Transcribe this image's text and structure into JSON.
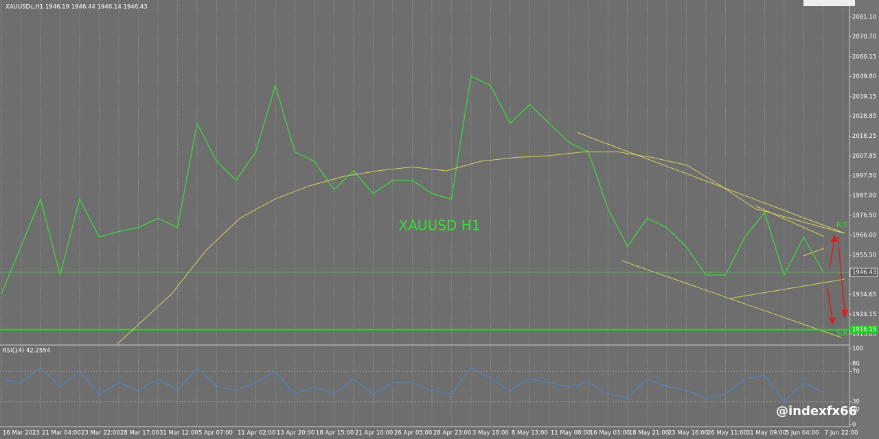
{
  "header": {
    "title": "XAUUSDc,H1  1946.19 1946.44 1946.14 1946.43"
  },
  "watermark": "XAUUSD H1",
  "annotations": {
    "resistance": "R.S",
    "support": "S.R"
  },
  "badge": "@indexfx66",
  "chart_data": {
    "type": "line",
    "categories": [
      "16 Mar 2023",
      "21 Mar 04:00",
      "23 Mar 22:00",
      "28 Mar 17:00",
      "31 Mar 12:00",
      "5 Apr 07:00",
      "11 Apr 02:00",
      "13 Apr 20:00",
      "18 Apr 15:00",
      "21 Apr 10:00",
      "26 Apr 05:00",
      "28 Apr 23:00",
      "3 May 18:00",
      "8 May 13:00",
      "11 May 08:00",
      "16 May 03:00",
      "18 May 21:00",
      "23 May 16:00",
      "26 May 11:00",
      "31 May 09:00",
      "5 Jun 04:00",
      "7 Jun 22:00"
    ],
    "xlim": [
      -0.035,
      21.67
    ],
    "ylim": [
      1908.4,
      2085.8
    ],
    "yticks": [
      {
        "value": 2081.1,
        "label": "2081.10"
      },
      {
        "value": 2070.7,
        "label": "2070.70"
      },
      {
        "value": 2060.15,
        "label": "2060.15"
      },
      {
        "value": 2049.8,
        "label": "2049.80"
      },
      {
        "value": 2039.15,
        "label": "2039.15"
      },
      {
        "value": 2028.85,
        "label": "2028.85"
      },
      {
        "value": 2018.25,
        "label": "2018.25"
      },
      {
        "value": 2007.85,
        "label": "2007.85"
      },
      {
        "value": 1997.5,
        "label": "1997.50"
      },
      {
        "value": 1987,
        "label": "1987.00"
      },
      {
        "value": 1976.5,
        "label": "1976.50"
      },
      {
        "value": 1966,
        "label": "1966.00"
      },
      {
        "value": 1955.5,
        "label": "1955.50"
      },
      {
        "value": 1934.65,
        "label": "1934.65"
      },
      {
        "value": 1924.15,
        "label": "1924.15"
      },
      {
        "value": 1913.85,
        "label": "1913.85"
      }
    ],
    "current_price": {
      "value": 1946.43,
      "label": "1946.43"
    },
    "support_level": {
      "value": 1916.15,
      "label": "1916.15"
    },
    "series": [
      {
        "name": "XAUUSDc",
        "color": "#44cc44",
        "x": [
          0,
          0.5,
          1,
          1.5,
          2,
          2.5,
          3,
          3.5,
          4,
          4.5,
          5,
          5.5,
          6,
          6.5,
          7,
          7.5,
          8,
          8.5,
          9,
          9.5,
          10,
          10.5,
          11,
          11.5,
          12,
          12.5,
          13,
          13.5,
          14,
          14.5,
          15,
          15.5,
          16,
          16.5,
          17,
          17.5,
          18,
          18.5,
          19,
          19.5,
          20,
          20.5,
          21
        ],
        "values": [
          1935,
          1960,
          1985,
          1945,
          1985,
          1965,
          1968,
          1970,
          1975,
          1970,
          2025,
          2005,
          1995,
          2010,
          2045,
          2010,
          2005,
          1990,
          2000,
          1988,
          1995,
          1995,
          1988,
          1985,
          2050,
          2045,
          2025,
          2035,
          2025,
          2015,
          2010,
          1980,
          1960,
          1975,
          1970,
          1960,
          1945,
          1945,
          1965,
          1978,
          1945,
          1965,
          1946.43
        ]
      },
      {
        "name": "MA",
        "color": "#d8d060",
        "x": [
          2.95,
          4.35,
          5.23,
          6.1,
          6.98,
          7.86,
          8.74,
          9.61,
          10.49,
          11.37,
          12.25,
          13.12,
          14,
          14.88,
          15.75,
          16.63,
          17.51,
          18.39,
          19.26,
          20.14,
          21.54
        ],
        "values": [
          1908.4,
          1935,
          1958,
          1975,
          1985,
          1992,
          1997,
          2000,
          2002,
          2000,
          2005,
          2007,
          2008,
          2010,
          2010,
          2007,
          2003,
          1992,
          1980,
          1975,
          1967
        ]
      }
    ],
    "rsi": {
      "label": "RSI(14) 42.2554",
      "color": "#4f84c4",
      "ylim": [
        0,
        100
      ],
      "yticks": [
        100,
        80,
        70,
        30,
        20,
        0
      ],
      "values": [
        60,
        55,
        75,
        50,
        70,
        40,
        55,
        45,
        60,
        45,
        75,
        50,
        45,
        55,
        70,
        40,
        50,
        40,
        60,
        40,
        55,
        55,
        45,
        40,
        75,
        60,
        45,
        60,
        55,
        50,
        55,
        40,
        35,
        60,
        50,
        45,
        35,
        40,
        60,
        65,
        30,
        55,
        42.26
      ]
    }
  }
}
